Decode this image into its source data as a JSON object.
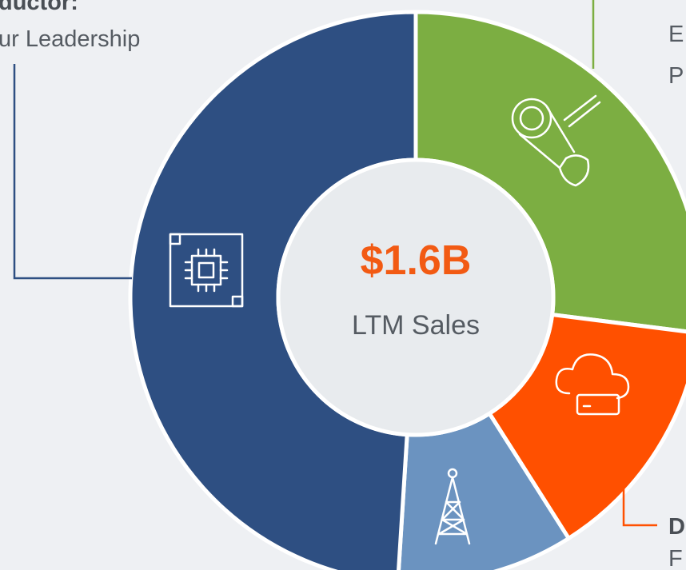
{
  "chart_data": {
    "type": "pie",
    "donut": true,
    "values": [
      27,
      14,
      10,
      49
    ],
    "colors": [
      "#7cae42",
      "#ff5000",
      "#6b93c0",
      "#2e4f82"
    ],
    "center_value": "$1.6B",
    "center_label": "LTM Sales",
    "annotations": [
      "ductor:",
      "ur Leadership",
      "E",
      "P",
      "D",
      "F"
    ]
  }
}
